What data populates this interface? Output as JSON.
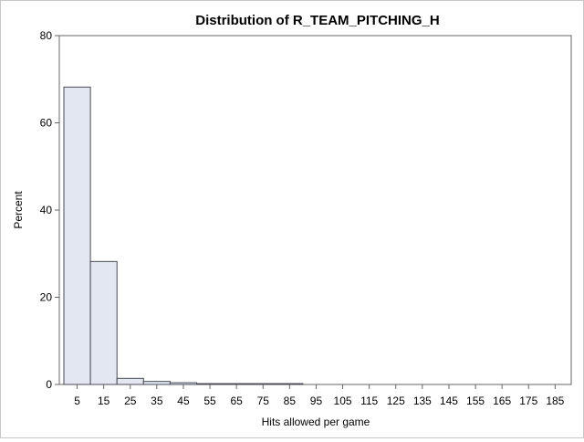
{
  "chart_data": {
    "type": "bar",
    "title": "Distribution of R_TEAM_PITCHING_H",
    "xlabel": "Hits allowed per game",
    "ylabel": "Percent",
    "ylim": [
      0,
      80
    ],
    "yticks": [
      0,
      20,
      40,
      60,
      80
    ],
    "bin_width": 10,
    "categories": [
      "5",
      "15",
      "25",
      "35",
      "45",
      "55",
      "65",
      "75",
      "85",
      "95",
      "105",
      "115",
      "125",
      "135",
      "145",
      "155",
      "165",
      "175",
      "185"
    ],
    "values": [
      68.2,
      28.2,
      1.4,
      0.7,
      0.4,
      0.2,
      0.2,
      0.2,
      0.2,
      0,
      0,
      0,
      0,
      0,
      0,
      0,
      0,
      0,
      0
    ],
    "grid": false,
    "colors": {
      "bar_fill": "#e3e7f1",
      "bar_stroke": "#4a4a55",
      "axis": "#666666",
      "text": "#000000"
    }
  }
}
